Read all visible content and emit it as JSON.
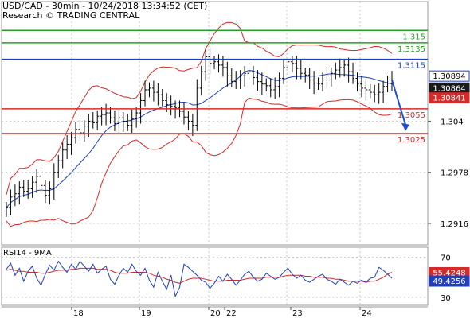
{
  "header": {
    "line1": "USD/CAD - 30min - 10/24/2018 13:34:52 (CET)",
    "line2": "Research © TRADING CENTRAL"
  },
  "colors": {
    "resistance": "#2a9d2a",
    "pivot": "#1f3fbf",
    "support": "#d42a2a",
    "price": "#000000",
    "moving_average": "#1f3fbf",
    "bollinger": "#d42a2a",
    "rsi": "#1f3fbf",
    "rsi_ma": "#d42a2a",
    "arrow": "#1f4fd0",
    "grid": "#c8c8c8"
  },
  "chart_data": [
    {
      "type": "candlestick",
      "ylim": [
        1.289,
        1.3185
      ],
      "x_ticks": [
        "18",
        "19",
        "20",
        "22",
        "23",
        "24"
      ],
      "y_ticks": [
        1.2916,
        1.2978,
        1.304
      ],
      "grid": true,
      "levels": [
        {
          "label": "1.315",
          "value": 1.315,
          "role": "resistance"
        },
        {
          "label": "1.3135",
          "value": 1.3135,
          "role": "resistance"
        },
        {
          "label": "1.3115",
          "value": 1.3115,
          "role": "pivot"
        },
        {
          "label": "1.3055",
          "value": 1.3055,
          "role": "support"
        },
        {
          "label": "1.3025",
          "value": 1.3025,
          "role": "support"
        }
      ],
      "price_boxes": [
        {
          "label": "1.30894",
          "value": 1.30894,
          "style": "outline"
        },
        {
          "label": "1.30864",
          "value": 1.30864,
          "style": "dark"
        },
        {
          "label": "1.30841",
          "value": 1.30841,
          "style": "red"
        }
      ],
      "closes": [
        1.2935,
        1.2948,
        1.2952,
        1.296,
        1.2955,
        1.2958,
        1.2966,
        1.2973,
        1.2962,
        1.295,
        1.2958,
        1.2978,
        1.2992,
        1.3005,
        1.3012,
        1.302,
        1.303,
        1.3026,
        1.3034,
        1.304,
        1.3038,
        1.3046,
        1.3048,
        1.305,
        1.3044,
        1.3037,
        1.3044,
        1.304,
        1.3035,
        1.3043,
        1.305,
        1.3065,
        1.3078,
        1.308,
        1.3075,
        1.3072,
        1.3065,
        1.306,
        1.3058,
        1.3056,
        1.3052,
        1.3045,
        1.304,
        1.3035,
        1.308,
        1.31,
        1.3118,
        1.311,
        1.3112,
        1.3108,
        1.3105,
        1.3095,
        1.3088,
        1.309,
        1.3095,
        1.3098,
        1.31,
        1.3093,
        1.3088,
        1.3085,
        1.3083,
        1.3078,
        1.3082,
        1.3092,
        1.3105,
        1.3112,
        1.311,
        1.3104,
        1.3098,
        1.3096,
        1.309,
        1.3086,
        1.3085,
        1.309,
        1.3095,
        1.3098,
        1.3102,
        1.3105,
        1.3108,
        1.31,
        1.3092,
        1.3085,
        1.308,
        1.3078,
        1.3075,
        1.3072,
        1.3075,
        1.3082,
        1.3086,
        1.309
      ]
    },
    {
      "type": "line",
      "title": "RSI14 - 9MA",
      "ylim": [
        22,
        80
      ],
      "y_ticks": [
        30,
        70
      ],
      "series": [
        {
          "values": [
            58,
            64,
            52,
            59,
            46,
            56,
            61,
            49,
            42,
            53,
            62,
            57,
            66,
            60,
            55,
            63,
            58,
            66,
            61,
            56,
            63,
            54,
            58,
            61,
            48,
            43,
            52,
            59,
            55,
            63,
            56,
            52,
            59,
            47,
            40,
            55,
            46,
            38,
            52,
            31,
            40,
            63,
            60,
            56,
            52,
            47,
            45,
            39,
            44,
            51,
            46,
            53,
            48,
            42,
            47,
            53,
            56,
            50,
            46,
            48,
            54,
            51,
            48,
            50,
            55,
            59,
            53,
            49,
            52,
            47,
            45,
            48,
            51,
            53,
            48,
            46,
            43,
            48,
            45,
            42,
            46,
            44,
            47,
            45,
            49,
            50,
            60,
            57,
            53,
            49
          ]
        },
        {
          "values": [
            57,
            58,
            57,
            56,
            56,
            55,
            55,
            55,
            54,
            54,
            55,
            56,
            57,
            57,
            57,
            58,
            58,
            59,
            59,
            59,
            59,
            58,
            58,
            58,
            57,
            55,
            54,
            54,
            54,
            55,
            55,
            55,
            55,
            54,
            52,
            51,
            50,
            48,
            47,
            45,
            44,
            46,
            48,
            49,
            49,
            49,
            48,
            47,
            46,
            46,
            46,
            47,
            47,
            47,
            47,
            48,
            49,
            49,
            49,
            49,
            50,
            50,
            50,
            50,
            51,
            52,
            52,
            52,
            52,
            51,
            51,
            50,
            50,
            50,
            49,
            49,
            48,
            48,
            47,
            46,
            46,
            46,
            46,
            45,
            46,
            46,
            48,
            50,
            53,
            55
          ]
        }
      ],
      "value_boxes": [
        {
          "label": "55.4248",
          "role": "rsi_ma"
        },
        {
          "label": "49.4256",
          "role": "rsi"
        }
      ]
    }
  ]
}
